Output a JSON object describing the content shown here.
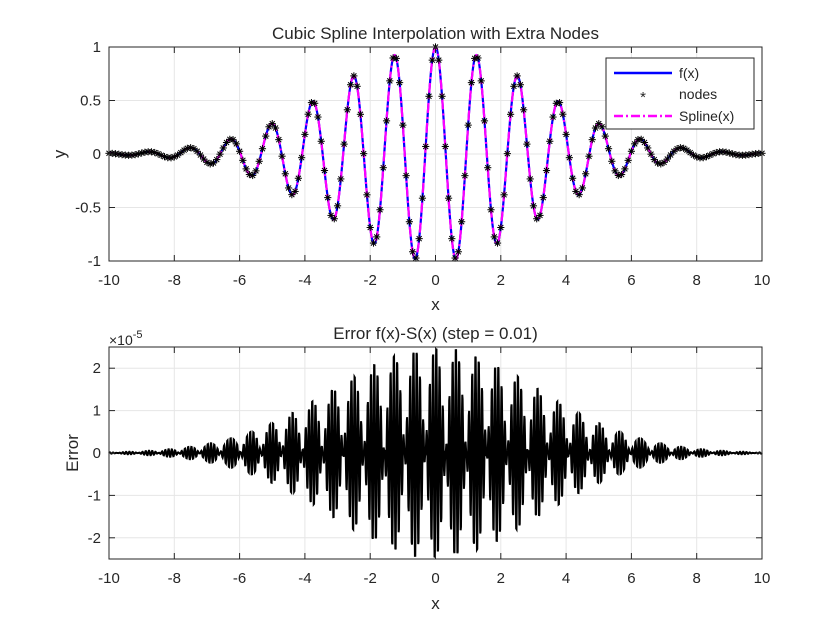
{
  "colors": {
    "fx": "#0000ff",
    "nodes": "#000000",
    "spline": "#ff00ff",
    "error": "#000000",
    "grid": "#e6e6e6",
    "axis": "#262626"
  },
  "chart_data": [
    {
      "type": "line",
      "title": "Cubic Spline Interpolation with Extra Nodes",
      "xlabel": "x",
      "ylabel": "y",
      "xlim": [
        -10,
        10
      ],
      "ylim": [
        -1,
        1
      ],
      "xticks": [
        -10,
        -8,
        -6,
        -4,
        -2,
        0,
        2,
        4,
        6,
        8,
        10
      ],
      "yticks": [
        -1,
        -0.5,
        0,
        0.5,
        1
      ],
      "ytick_labels": [
        "-1",
        "-0.5",
        "0",
        "0.5",
        "1"
      ],
      "grid": true,
      "legend": "top-right",
      "function": "f(x) = cos(5x) * exp(-x^2/20)",
      "series": [
        {
          "name": "f(x)",
          "style": "solid-line"
        },
        {
          "name": "nodes",
          "style": "asterisk-markers",
          "x_start": -10,
          "x_end": 10,
          "x_step": 0.1
        },
        {
          "name": "Spline(x)",
          "style": "dash-dot-line"
        }
      ]
    },
    {
      "type": "line",
      "title": "Error f(x)-S(x) (step = 0.01)",
      "xlabel": "x",
      "ylabel": "Error",
      "xlim": [
        -10,
        10
      ],
      "ylim": [
        -2.5,
        2.5
      ],
      "y_exponent": "×10^-5",
      "exponent_base": "×10",
      "exponent_power": "-5",
      "xticks": [
        -10,
        -8,
        -6,
        -4,
        -2,
        0,
        2,
        4,
        6,
        8,
        10
      ],
      "yticks": [
        -2,
        -1,
        0,
        1,
        2
      ],
      "grid": true,
      "peak_error": 2.6,
      "series": [
        {
          "name": "Error",
          "x_step": 0.01
        }
      ]
    }
  ]
}
